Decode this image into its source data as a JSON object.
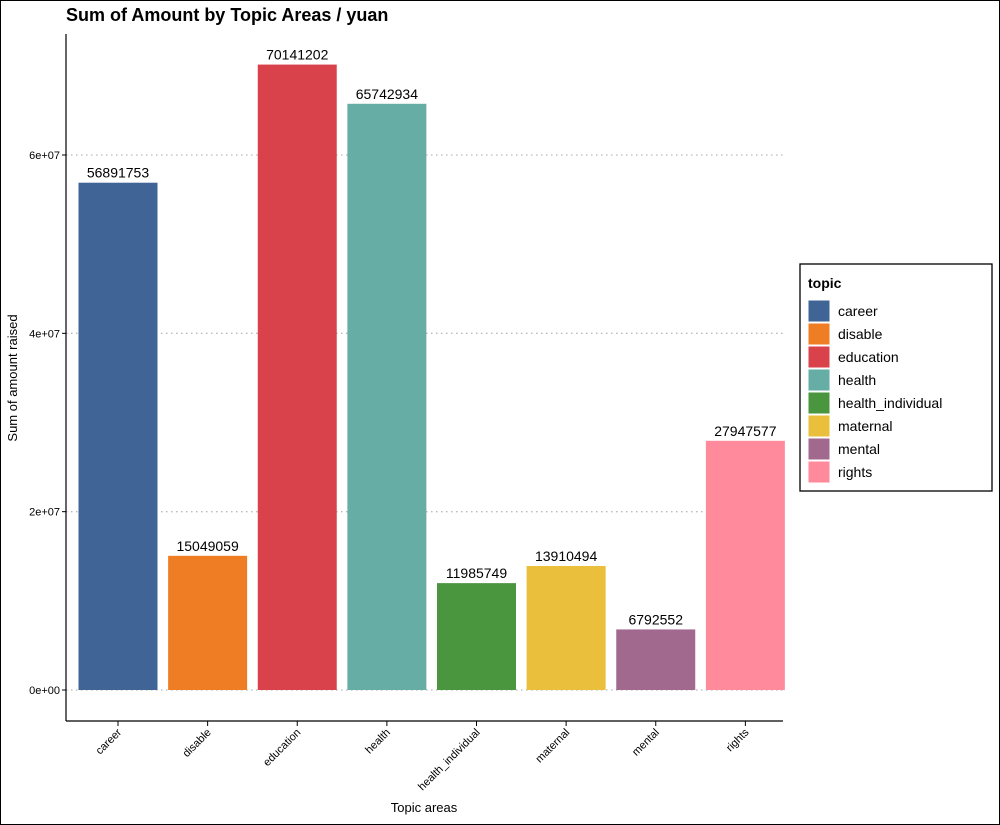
{
  "chart_data": {
    "type": "bar",
    "title": "Sum of Amount by Topic Areas / yuan",
    "xlabel": "Topic areas",
    "ylabel": "Sum of amount raised",
    "categories": [
      "career",
      "disable",
      "education",
      "health",
      "health_individual",
      "maternal",
      "mental",
      "rights"
    ],
    "values": [
      56891753,
      15049059,
      70141202,
      65742934,
      11985749,
      13910494,
      6792552,
      27947577
    ],
    "data_labels": [
      "56891753",
      "15049059",
      "70141202",
      "65742934",
      "11985749",
      "13910494",
      "6792552",
      "27947577"
    ],
    "colors": [
      "#416496",
      "#ee7d24",
      "#d9424b",
      "#65ada5",
      "#4a963f",
      "#e9bf3b",
      "#a2698f",
      "#ff8a9b"
    ],
    "yticks": [
      0,
      20000000,
      40000000,
      60000000
    ],
    "ytick_labels": [
      "0e+00",
      "2e+07",
      "4e+07",
      "6e+07"
    ],
    "ylim": [
      0,
      73000000
    ],
    "grid": "horizontal-dotted",
    "legend": {
      "title": "topic",
      "position": "right",
      "entries": [
        "career",
        "disable",
        "education",
        "health",
        "health_individual",
        "maternal",
        "mental",
        "rights"
      ]
    }
  }
}
